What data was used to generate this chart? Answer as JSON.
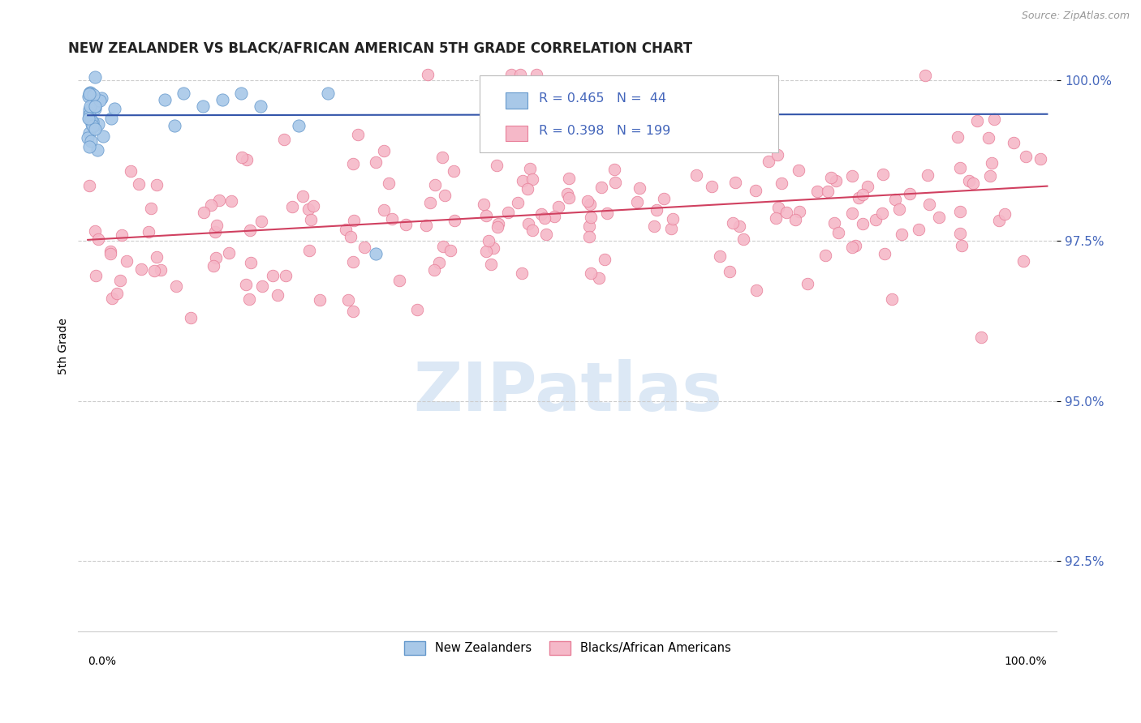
{
  "title": "NEW ZEALANDER VS BLACK/AFRICAN AMERICAN 5TH GRADE CORRELATION CHART",
  "source": "Source: ZipAtlas.com",
  "ylabel": "5th Grade",
  "yticks": [
    0.925,
    0.95,
    0.975,
    1.0
  ],
  "ytick_labels": [
    "92.5%",
    "95.0%",
    "97.5%",
    "100.0%"
  ],
  "legend_r_blue": "R = 0.465",
  "legend_n_blue": "N =  44",
  "legend_r_pink": "R = 0.398",
  "legend_n_pink": "N = 199",
  "legend_label_blue": "New Zealanders",
  "legend_label_pink": "Blacks/African Americans",
  "blue_marker_color": "#a8c8e8",
  "blue_edge_color": "#6699cc",
  "pink_marker_color": "#f5b8c8",
  "pink_edge_color": "#e8809a",
  "trend_blue_color": "#3355aa",
  "trend_pink_color": "#d04060",
  "tick_label_color": "#4466bb",
  "watermark_color": "#dce8f5",
  "source_color": "#999999",
  "title_color": "#222222",
  "grid_color": "#cccccc"
}
